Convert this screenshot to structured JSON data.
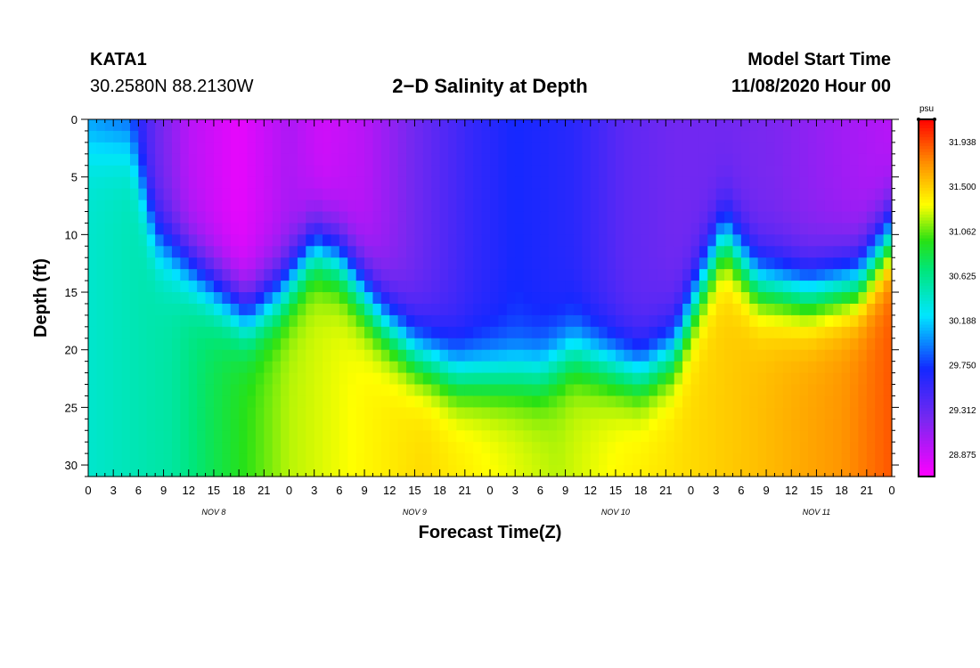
{
  "header": {
    "station": "KATA1",
    "coordinates": "30.2580N 88.2130W",
    "title": "2−D Salinity at Depth",
    "start_label": "Model Start Time",
    "start_value": "11/08/2020 Hour 00"
  },
  "chart_data": {
    "type": "heatmap",
    "title": "2−D Salinity at Depth",
    "xlabel": "Forecast Time(Z)",
    "ylabel": "Depth (ft)",
    "x_tick_labels": [
      "0",
      "3",
      "6",
      "9",
      "12",
      "15",
      "18",
      "21",
      "0",
      "3",
      "6",
      "9",
      "12",
      "15",
      "18",
      "21",
      "0",
      "3",
      "6",
      "9",
      "12",
      "15",
      "18",
      "21",
      "0",
      "3",
      "6",
      "9",
      "12",
      "15",
      "18",
      "21",
      "0"
    ],
    "date_labels": [
      {
        "label": "NOV 8",
        "hour": 15
      },
      {
        "label": "NOV 9",
        "hour": 39
      },
      {
        "label": "NOV 10",
        "hour": 63
      },
      {
        "label": "NOV 11",
        "hour": 87
      }
    ],
    "x_range_hours": [
      0,
      96
    ],
    "y_range_ft": [
      0,
      31
    ],
    "y_tick_labels": [
      "0",
      "5",
      "10",
      "15",
      "20",
      "25",
      "30"
    ],
    "colorbar": {
      "unit": "psu",
      "min": 28.656,
      "max": 32.156,
      "tick_values": [
        "31.938",
        "31.500",
        "31.062",
        "30.625",
        "30.188",
        "29.750",
        "29.312",
        "28.875"
      ]
    },
    "halocline_depth_ft": [
      {
        "hour": 0,
        "depth": 2
      },
      {
        "hour": 5,
        "depth": 2
      },
      {
        "hour": 8,
        "depth": 10
      },
      {
        "hour": 14,
        "depth": 14
      },
      {
        "hour": 19,
        "depth": 17
      },
      {
        "hour": 23,
        "depth": 15
      },
      {
        "hour": 27,
        "depth": 11
      },
      {
        "hour": 30,
        "depth": 12
      },
      {
        "hour": 35,
        "depth": 17
      },
      {
        "hour": 39,
        "depth": 20
      },
      {
        "hour": 44,
        "depth": 22
      },
      {
        "hour": 48,
        "depth": 22
      },
      {
        "hour": 54,
        "depth": 22
      },
      {
        "hour": 58,
        "depth": 20
      },
      {
        "hour": 62,
        "depth": 21
      },
      {
        "hour": 66,
        "depth": 22
      },
      {
        "hour": 70,
        "depth": 20
      },
      {
        "hour": 74,
        "depth": 13
      },
      {
        "hour": 76,
        "depth": 10
      },
      {
        "hour": 80,
        "depth": 14
      },
      {
        "hour": 86,
        "depth": 15
      },
      {
        "hour": 92,
        "depth": 14
      },
      {
        "hour": 96,
        "depth": 10
      }
    ],
    "surface_salinity_psu": [
      {
        "hour": 0,
        "psu": 29.95
      },
      {
        "hour": 5,
        "psu": 29.75
      },
      {
        "hour": 8,
        "psu": 29.3
      },
      {
        "hour": 12,
        "psu": 28.95
      },
      {
        "hour": 18,
        "psu": 28.75
      },
      {
        "hour": 24,
        "psu": 29.0
      },
      {
        "hour": 28,
        "psu": 28.85
      },
      {
        "hour": 33,
        "psu": 28.95
      },
      {
        "hour": 39,
        "psu": 29.25
      },
      {
        "hour": 46,
        "psu": 29.55
      },
      {
        "hour": 51,
        "psu": 29.7
      },
      {
        "hour": 58,
        "psu": 29.6
      },
      {
        "hour": 64,
        "psu": 29.35
      },
      {
        "hour": 70,
        "psu": 29.25
      },
      {
        "hour": 76,
        "psu": 29.25
      },
      {
        "hour": 82,
        "psu": 29.2
      },
      {
        "hour": 90,
        "psu": 29.05
      },
      {
        "hour": 96,
        "psu": 28.95
      }
    ],
    "bottom_salinity_psu": [
      {
        "hour": 0,
        "psu": 30.4
      },
      {
        "hour": 10,
        "psu": 30.55
      },
      {
        "hour": 14,
        "psu": 30.75
      },
      {
        "hour": 24,
        "psu": 31.2
      },
      {
        "hour": 40,
        "psu": 31.45
      },
      {
        "hour": 56,
        "psu": 31.2
      },
      {
        "hour": 64,
        "psu": 31.35
      },
      {
        "hour": 80,
        "psu": 31.55
      },
      {
        "hour": 90,
        "psu": 31.7
      },
      {
        "hour": 96,
        "psu": 31.9
      }
    ]
  }
}
